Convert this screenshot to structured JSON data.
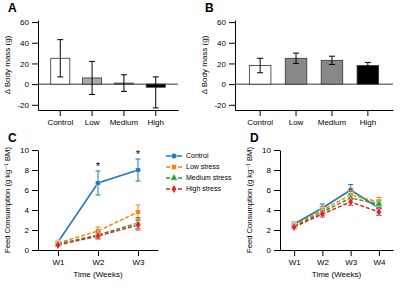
{
  "chart_data": [
    {
      "type": "bar",
      "title": "A",
      "categories": [
        "Control",
        "Low",
        "Medium",
        "High"
      ],
      "values": [
        25,
        6,
        1,
        -3
      ],
      "errors_pos": [
        18,
        16,
        8,
        10
      ],
      "errors_neg": [
        18,
        16,
        8,
        20
      ],
      "colors": [
        "white",
        "#aaaaaa",
        "#aaaaaa",
        "black"
      ],
      "ylabel": "Δ Body mass (g)",
      "ylim": [
        -25,
        62
      ],
      "yticks": [
        -20,
        0,
        20,
        40,
        60
      ],
      "grid": false
    },
    {
      "type": "bar",
      "title": "B",
      "categories": [
        "Control",
        "Low",
        "Medium",
        "High"
      ],
      "values": [
        18,
        25,
        23,
        18
      ],
      "errors_pos": [
        7,
        5,
        4,
        3
      ],
      "errors_neg": [
        7,
        5,
        4,
        3
      ],
      "colors": [
        "white",
        "#888888",
        "#888888",
        "black"
      ],
      "ylabel": "Δ Body mass (g)",
      "ylim": [
        -25,
        62
      ],
      "yticks": [
        -20,
        0,
        20,
        40,
        60
      ],
      "grid": false
    },
    {
      "type": "line",
      "title": "C",
      "categories": [
        "W1",
        "W2",
        "W3"
      ],
      "series": [
        {
          "name": "Control",
          "values": [
            0.8,
            6.7,
            8.0
          ],
          "errors": [
            0.15,
            1.2,
            1.1
          ],
          "marker": "circle",
          "line_style": "solid"
        },
        {
          "name": "Low stress",
          "values": [
            0.7,
            1.9,
            3.8
          ],
          "errors": [
            0.1,
            0.4,
            0.7
          ],
          "marker": "square",
          "line_style": "dashed"
        },
        {
          "name": "Medium stress",
          "values": [
            0.6,
            1.5,
            2.7
          ],
          "errors": [
            0.1,
            0.35,
            0.55
          ],
          "marker": "triangle",
          "line_style": "dashed"
        },
        {
          "name": "High stress",
          "values": [
            0.5,
            1.4,
            2.5
          ],
          "errors": [
            0.1,
            0.3,
            0.5
          ],
          "marker": "diamond",
          "line_style": "dashed"
        }
      ],
      "xlabel": "Time (Weeks)",
      "ylabel": "Feed Consumption (g kg⁻¹ BM)",
      "ylim": [
        0,
        10
      ],
      "yticks": [
        0,
        2,
        4,
        6,
        8,
        10
      ],
      "grid": false,
      "legend": "right",
      "annotations": [
        {
          "text": "*",
          "x": "W2"
        },
        {
          "text": "*",
          "x": "W3"
        }
      ]
    },
    {
      "type": "line",
      "title": "D",
      "categories": [
        "W1",
        "W2",
        "W3",
        "W4"
      ],
      "series": [
        {
          "values": [
            2.6,
            4.2,
            6.0,
            4.2
          ],
          "errors": [
            0.2,
            0.4,
            0.55,
            0.5
          ],
          "marker": "circle",
          "line_style": "solid"
        },
        {
          "values": [
            2.5,
            4.0,
            5.5,
            4.8
          ],
          "errors": [
            0.15,
            0.35,
            0.45,
            0.45
          ],
          "marker": "square",
          "line_style": "dashed"
        },
        {
          "values": [
            2.4,
            3.8,
            5.2,
            4.6
          ],
          "errors": [
            0.15,
            0.3,
            0.4,
            0.4
          ],
          "marker": "triangle",
          "line_style": "dashed"
        },
        {
          "values": [
            2.3,
            3.6,
            4.8,
            3.8
          ],
          "errors": [
            0.15,
            0.3,
            0.35,
            0.35
          ],
          "marker": "diamond",
          "line_style": "dashed"
        }
      ],
      "xlabel": "Time (Weeks)",
      "ylabel": "Feed Consumption (g kg⁻¹ BM)",
      "ylim": [
        0,
        10
      ],
      "yticks": [
        0,
        2,
        4,
        6,
        8,
        10
      ],
      "grid": false
    }
  ]
}
